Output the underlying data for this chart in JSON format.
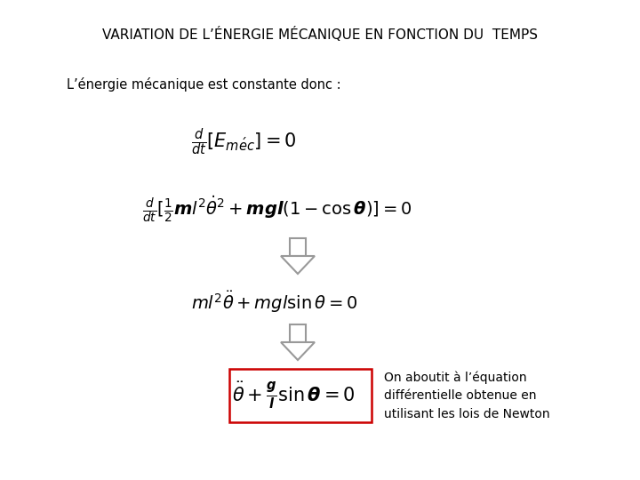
{
  "title": "VARIATION DE L’ÉNERGIE MÉCANIQUE EN FONCTION DU  TEMPS",
  "subtitle": "L’énergie mécanique est constante donc :",
  "note": "On aboutit à l’équation\ndifférentielle obtenue en\nutilisant les lois de Newton",
  "bg_color": "#ffffff",
  "text_color": "#000000",
  "box_color": "#cc0000",
  "title_fontsize": 11,
  "subtitle_fontsize": 10.5,
  "eq1_fontsize": 15,
  "eq2_fontsize": 14,
  "eq3_fontsize": 14,
  "eq4_fontsize": 15,
  "note_fontsize": 10,
  "arrow_fc": "#ffffff",
  "arrow_ec": "#999999"
}
